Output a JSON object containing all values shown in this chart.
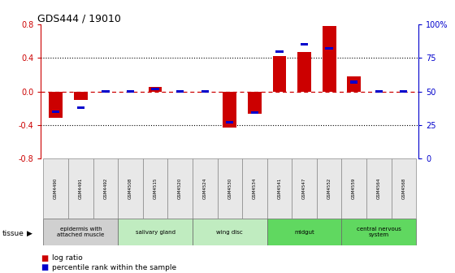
{
  "title": "GDS444 / 19010",
  "samples": [
    "GSM4490",
    "GSM4491",
    "GSM4492",
    "GSM4508",
    "GSM4515",
    "GSM4520",
    "GSM4524",
    "GSM4530",
    "GSM4534",
    "GSM4541",
    "GSM4547",
    "GSM4552",
    "GSM4559",
    "GSM4564",
    "GSM4568"
  ],
  "log_ratio": [
    -0.32,
    -0.1,
    0.0,
    0.0,
    0.05,
    0.0,
    0.0,
    -0.43,
    -0.27,
    0.42,
    0.47,
    0.78,
    0.18,
    0.0,
    0.0
  ],
  "percentile": [
    35,
    38,
    50,
    50,
    52,
    50,
    50,
    27,
    34,
    80,
    85,
    82,
    57,
    50,
    50
  ],
  "bar_color_red": "#cc0000",
  "bar_color_blue": "#0000cc",
  "dashed_line_color": "#cc0000",
  "ylim_left": [
    -0.8,
    0.8
  ],
  "ylim_right": [
    0,
    100
  ],
  "yticks_left": [
    -0.8,
    -0.4,
    0.0,
    0.4,
    0.8
  ],
  "yticks_right": [
    0,
    25,
    50,
    75,
    100
  ],
  "ytick_labels_right": [
    "0",
    "25",
    "50",
    "75",
    "100%"
  ],
  "tissue_groups": [
    {
      "label": "epidermis with\nattached muscle",
      "start": 0,
      "end": 3,
      "color": "#d0d0d0"
    },
    {
      "label": "salivary gland",
      "start": 3,
      "end": 6,
      "color": "#c0ecc0"
    },
    {
      "label": "wing disc",
      "start": 6,
      "end": 9,
      "color": "#c0ecc0"
    },
    {
      "label": "midgut",
      "start": 9,
      "end": 12,
      "color": "#60d860"
    },
    {
      "label": "central nervous\nsystem",
      "start": 12,
      "end": 15,
      "color": "#60d860"
    }
  ],
  "legend_items": [
    {
      "label": "log ratio",
      "color": "#cc0000"
    },
    {
      "label": "percentile rank within the sample",
      "color": "#0000cc"
    }
  ],
  "tissue_label": "tissue",
  "background_color": "#ffffff",
  "plot_bg_color": "#ffffff",
  "dotted_line_y": [
    -0.4,
    0.4
  ],
  "bar_width": 0.55
}
